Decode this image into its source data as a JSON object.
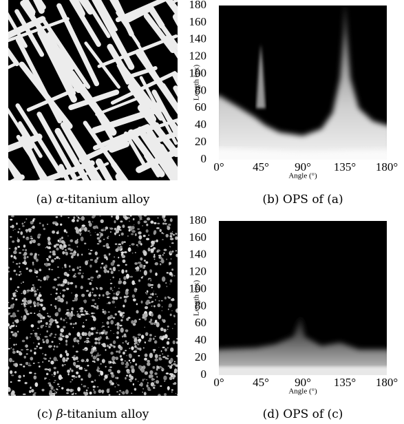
{
  "panels": [
    {
      "kind": "image",
      "style": "alpha",
      "label": "(a)",
      "symbol": "α",
      "text": "-titanium alloy"
    },
    {
      "kind": "plot",
      "style": "alpha",
      "label": "(b)",
      "text": "OPS of (a)",
      "ylabel": "Length (px)",
      "xlabel": "Angle (°)",
      "ylim": [
        0,
        180
      ],
      "xlim": [
        0,
        180
      ],
      "yticks": [
        0,
        20,
        40,
        60,
        80,
        100,
        120,
        140,
        160,
        180
      ],
      "xticks": [
        {
          "value": 0,
          "label": "0°"
        },
        {
          "value": 45,
          "label": "45°"
        },
        {
          "value": 90,
          "label": "90°"
        },
        {
          "value": 135,
          "label": "135°"
        },
        {
          "value": 180,
          "label": "180°"
        }
      ]
    },
    {
      "kind": "image",
      "style": "beta",
      "label": "(c)",
      "symbol": "β",
      "text": "-titanium alloy"
    },
    {
      "kind": "plot",
      "style": "beta",
      "label": "(d)",
      "text": "OPS of (c)",
      "ylabel": "Length (px)",
      "xlabel": "Angle (°)",
      "ylim": [
        0,
        180
      ],
      "xlim": [
        0,
        180
      ],
      "yticks": [
        0,
        20,
        40,
        60,
        80,
        100,
        120,
        140,
        160,
        180
      ],
      "xticks": [
        {
          "value": 0,
          "label": "0°"
        },
        {
          "value": 45,
          "label": "45°"
        },
        {
          "value": 90,
          "label": "90°"
        },
        {
          "value": 135,
          "label": "135°"
        },
        {
          "value": 180,
          "label": "180°"
        }
      ]
    }
  ]
}
